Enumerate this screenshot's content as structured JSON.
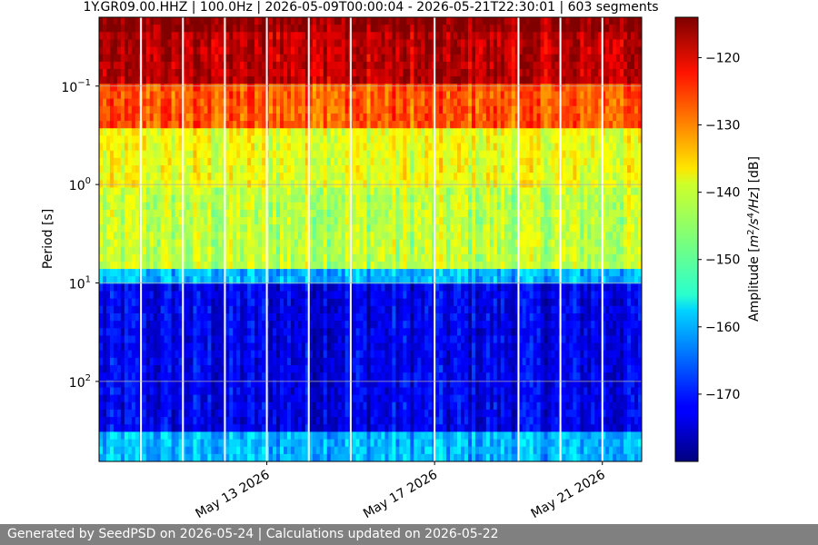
{
  "chart_data": {
    "type": "heatmap",
    "title": "1Y.GR09.00.HHZ | 100.0Hz | 2026-05-09T00:00:04 - 2026-05-21T22:30:01 | 603 segments",
    "xlabel": "",
    "ylabel": "Period [s]",
    "x_scale": "date",
    "x_range": [
      "2026-05-09T00:00:04",
      "2026-05-21T22:30:01"
    ],
    "x_ticks": [
      "May 13 2026",
      "May 17 2026",
      "May 21 2026"
    ],
    "x_tick_dates": [
      "2026-05-13",
      "2026-05-17",
      "2026-05-21"
    ],
    "y_scale": "log",
    "y_inverted": true,
    "y_range": [
      0.02,
      650
    ],
    "y_ticks": [
      "10^-1",
      "10^0",
      "10^1",
      "10^2"
    ],
    "y_tick_values": [
      0.1,
      1,
      10,
      100
    ],
    "grid": true,
    "colormap": "jet",
    "colorbar": {
      "label": "Amplitude [m^2/s^4/Hz] [dB]",
      "range": [
        -180,
        -114
      ],
      "ticks": [
        -120,
        -130,
        -140,
        -150,
        -160,
        -170
      ]
    },
    "segments": 603,
    "band_levels": [
      {
        "period_range": [
          0.02,
          0.03
        ],
        "amplitude_db": -115
      },
      {
        "period_range": [
          0.03,
          0.1
        ],
        "amplitude_db": -118
      },
      {
        "period_range": [
          0.1,
          0.25
        ],
        "amplitude_db": -128
      },
      {
        "period_range": [
          0.25,
          1.0
        ],
        "amplitude_db": -140
      },
      {
        "period_range": [
          1.0,
          7.0
        ],
        "amplitude_db": -143
      },
      {
        "period_range": [
          7.0,
          10.0
        ],
        "amplitude_db": -160
      },
      {
        "period_range": [
          10.0,
          300.0
        ],
        "amplitude_db": -173
      },
      {
        "period_range": [
          300.0,
          650.0
        ],
        "amplitude_db": -160
      }
    ],
    "data_gaps": [
      "2026-05-10",
      "2026-05-11",
      "2026-05-12",
      "2026-05-13",
      "2026-05-14",
      "2026-05-15",
      "2026-05-17",
      "2026-05-19",
      "2026-05-20",
      "2026-05-21"
    ]
  },
  "footer": {
    "text": "Generated by SeedPSD on 2026-05-24 | Calculations updated on 2026-05-22"
  }
}
